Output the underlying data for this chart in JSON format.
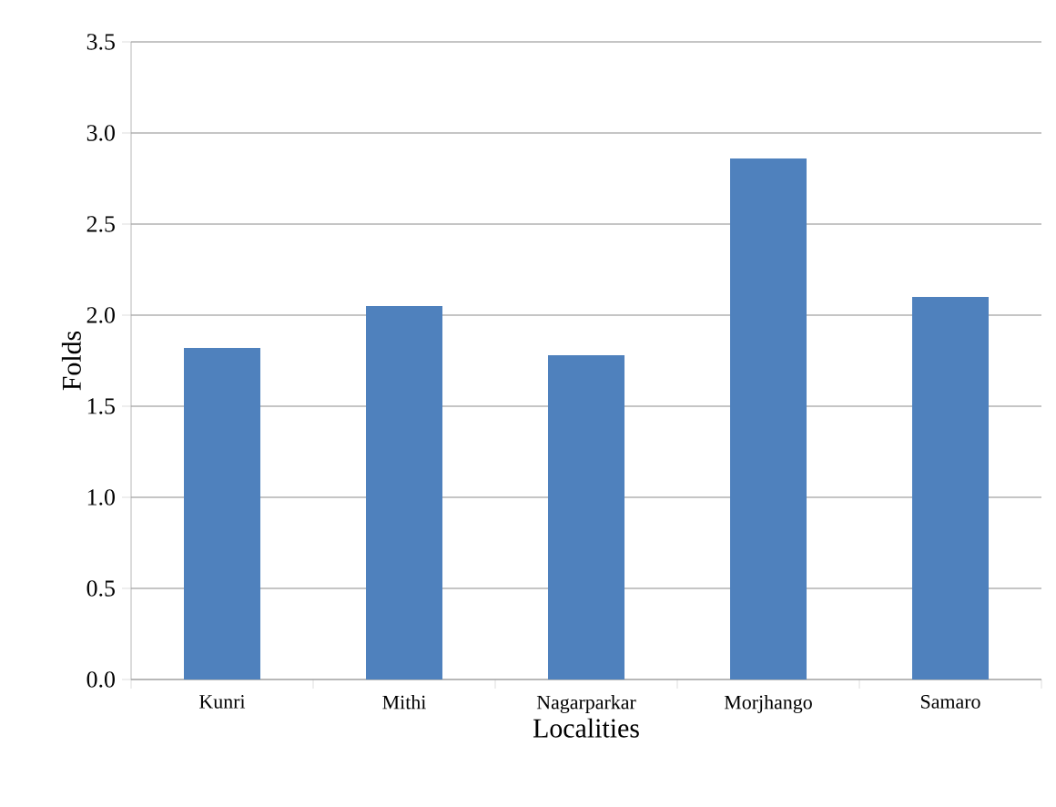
{
  "chart_data": {
    "type": "bar",
    "xlabel": "Localities",
    "ylabel": "Folds",
    "categories": [
      "Kunri",
      "Mithi",
      "Nagarparkar",
      "Morjhango",
      "Samaro"
    ],
    "values": [
      1.82,
      2.05,
      1.78,
      2.86,
      2.1
    ],
    "color": "#4f81bd",
    "ylim": [
      0,
      3.5
    ],
    "yticks": [
      {
        "value": 0,
        "label": "0.0"
      },
      0.5,
      {
        "value": 1,
        "label": "1.0"
      },
      1.5,
      {
        "value": 2,
        "label": "2.0"
      },
      2.5,
      {
        "value": 3,
        "label": "3.0"
      },
      3.5
    ],
    "grid": "y"
  }
}
